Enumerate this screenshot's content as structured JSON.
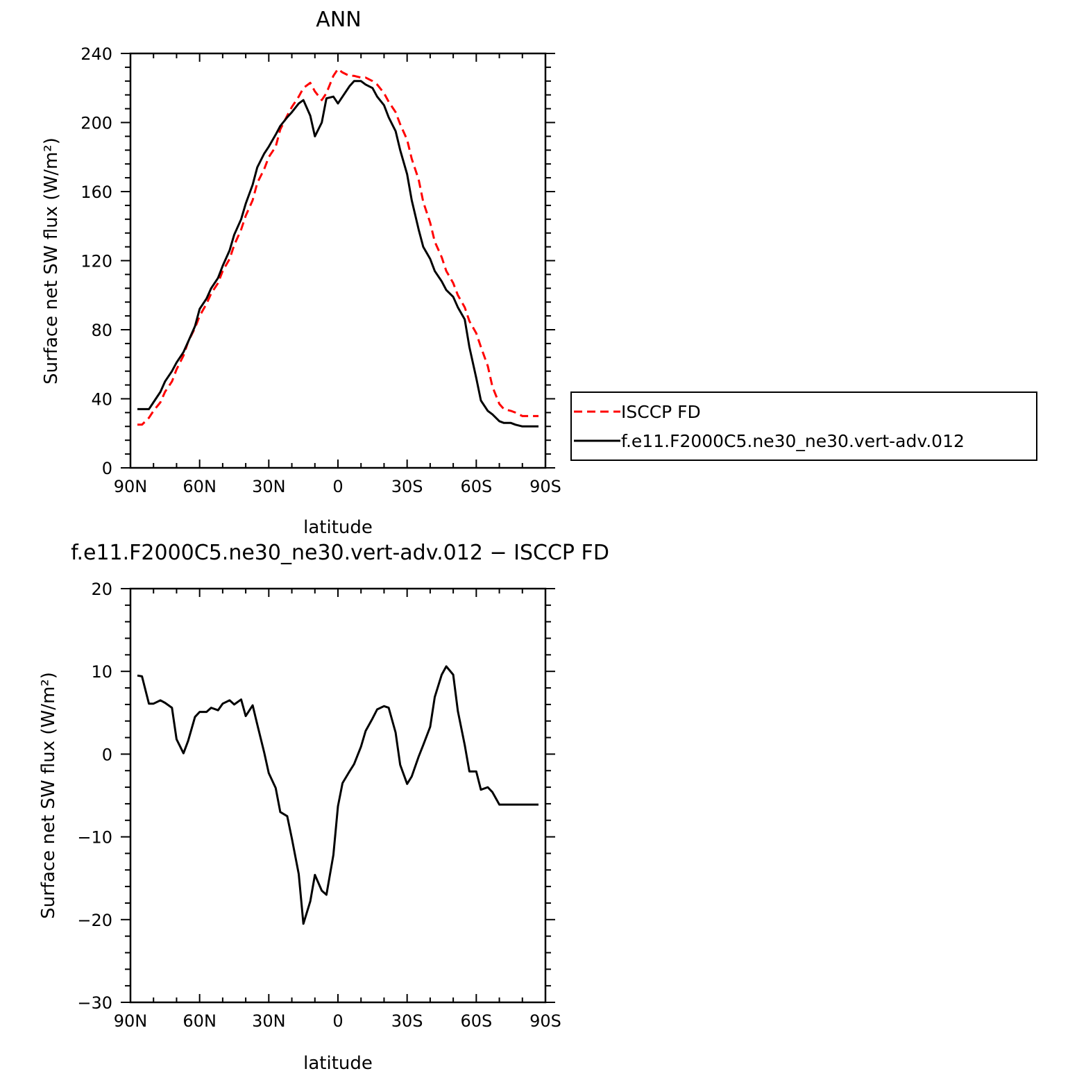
{
  "chart_data": [
    {
      "type": "line",
      "title": "ANN",
      "xlabel": "latitude",
      "ylabel": "Surface net SW flux (W/m²)",
      "xlim": [
        90,
        -90
      ],
      "ylim": [
        0,
        240
      ],
      "x_ticks": [
        90,
        60,
        30,
        0,
        -30,
        -60,
        -90
      ],
      "x_tick_labels": [
        "90N",
        "60N",
        "30N",
        "0",
        "30S",
        "60S",
        "90S"
      ],
      "y_ticks": [
        0,
        40,
        80,
        120,
        160,
        200,
        240
      ],
      "y_tick_labels": [
        "0",
        "40",
        "80",
        "120",
        "160",
        "200",
        "240"
      ],
      "grid": false,
      "legend_position": "right",
      "series": [
        {
          "name": "ISCCP FD",
          "color": "#ff0000",
          "dash": true,
          "x": [
            87,
            85,
            82,
            80,
            77,
            75,
            72,
            70,
            67,
            65,
            62,
            60,
            57,
            55,
            52,
            50,
            47,
            45,
            42,
            40,
            37,
            35,
            32,
            30,
            27,
            25,
            22,
            20,
            17,
            15,
            12,
            10,
            7,
            5,
            2,
            0,
            -2,
            -5,
            -7,
            -10,
            -12,
            -15,
            -17,
            -20,
            -22,
            -25,
            -27,
            -30,
            -32,
            -35,
            -37,
            -40,
            -42,
            -45,
            -47,
            -50,
            -52,
            -55,
            -57,
            -60,
            -62,
            -65,
            -67,
            -70,
            -72,
            -75,
            -77,
            -80,
            -82,
            -85,
            -87
          ],
          "y": [
            25,
            25,
            29,
            33,
            38,
            44,
            50,
            57,
            65,
            73,
            81,
            88,
            95,
            101,
            107,
            114,
            121,
            129,
            138,
            146,
            155,
            165,
            173,
            180,
            186,
            196,
            204,
            209,
            215,
            220,
            223,
            218,
            213,
            217,
            227,
            231,
            229,
            227,
            227,
            226,
            226,
            224,
            222,
            217,
            212,
            206,
            199,
            190,
            179,
            167,
            154,
            142,
            131,
            122,
            114,
            107,
            100,
            93,
            85,
            78,
            70,
            59,
            47,
            37,
            34,
            33,
            32,
            30,
            30,
            30,
            30
          ]
        },
        {
          "name": "f.e11.F2000C5.ne30_ne30.vert-adv.012",
          "color": "#000000",
          "dash": false,
          "x": [
            87,
            85,
            82,
            80,
            77,
            75,
            72,
            70,
            67,
            65,
            62,
            60,
            57,
            55,
            52,
            50,
            47,
            45,
            42,
            40,
            37,
            35,
            32,
            30,
            27,
            25,
            22,
            20,
            17,
            15,
            12,
            10,
            7,
            5,
            2,
            0,
            -2,
            -5,
            -7,
            -10,
            -12,
            -15,
            -17,
            -20,
            -22,
            -25,
            -27,
            -30,
            -32,
            -35,
            -37,
            -40,
            -42,
            -45,
            -47,
            -50,
            -52,
            -55,
            -57,
            -60,
            -62,
            -65,
            -67,
            -70,
            -72,
            -75,
            -77,
            -80,
            -82,
            -85,
            -87
          ],
          "y": [
            34,
            34,
            34,
            38,
            44,
            50,
            56,
            61,
            67,
            73,
            82,
            92,
            98,
            104,
            110,
            117,
            126,
            135,
            144,
            153,
            164,
            174,
            182,
            186,
            193,
            198,
            203,
            206,
            211,
            213,
            204,
            192,
            200,
            214,
            215,
            211,
            215,
            221,
            224,
            224,
            222,
            220,
            215,
            210,
            203,
            195,
            184,
            170,
            155,
            138,
            128,
            121,
            114,
            108,
            103,
            99,
            93,
            86,
            70,
            52,
            39,
            33,
            31,
            27,
            26,
            26,
            25,
            24,
            24,
            24,
            24
          ]
        }
      ]
    },
    {
      "type": "line",
      "title": "f.e11.F2000C5.ne30_ne30.vert-adv.012 − ISCCP FD",
      "xlabel": "latitude",
      "ylabel": "Surface net SW flux (W/m²)",
      "xlim": [
        90,
        -90
      ],
      "ylim": [
        -30,
        20
      ],
      "x_ticks": [
        90,
        60,
        30,
        0,
        -30,
        -60,
        -90
      ],
      "x_tick_labels": [
        "90N",
        "60N",
        "30N",
        "0",
        "30S",
        "60S",
        "90S"
      ],
      "y_ticks": [
        -30,
        -20,
        -10,
        0,
        10,
        20
      ],
      "y_tick_labels": [
        "−30",
        "−20",
        "−10",
        "0",
        "10",
        "20"
      ],
      "grid": false,
      "series": [
        {
          "color": "#000000",
          "dash": false,
          "x": [
            87,
            85,
            82,
            80,
            77,
            75,
            72,
            70,
            67,
            65,
            62,
            60,
            57,
            55,
            52,
            50,
            47,
            45,
            42,
            40,
            37,
            35,
            32,
            30,
            27,
            25,
            22,
            20,
            17,
            15,
            12,
            10,
            7,
            5,
            2,
            0,
            -2,
            -5,
            -7,
            -10,
            -12,
            -15,
            -17,
            -20,
            -22,
            -25,
            -27,
            -30,
            -32,
            -35,
            -37,
            -40,
            -42,
            -45,
            -47,
            -50,
            -52,
            -55,
            -57,
            -60,
            -62,
            -65,
            -67,
            -70,
            -72,
            -75,
            -77,
            -80,
            -82,
            -85,
            -87
          ],
          "y": [
            9.5,
            9.4,
            6.1,
            6.1,
            6.5,
            6.2,
            5.6,
            1.8,
            0.1,
            1.6,
            4.5,
            5.1,
            5.1,
            5.6,
            5.3,
            6.1,
            6.5,
            6.0,
            6.6,
            4.6,
            5.9,
            3.6,
            0.2,
            -2.3,
            -4.1,
            -7.0,
            -7.5,
            -10.2,
            -14.5,
            -20.5,
            -17.8,
            -14.6,
            -16.5,
            -17.0,
            -12.2,
            -6.3,
            -3.5,
            -2.1,
            -1.2,
            0.9,
            2.8,
            4.3,
            5.4,
            5.8,
            5.6,
            2.6,
            -1.3,
            -3.6,
            -2.7,
            -0.3,
            1.1,
            3.3,
            6.9,
            9.6,
            10.6,
            9.6,
            5.2,
            1.1,
            -2.1,
            -2.1,
            -4.3,
            -4.0,
            -4.6,
            -6.1,
            -6.1,
            -6.1,
            -6.1,
            -6.1,
            -6.1,
            -6.1,
            -6.1
          ]
        }
      ]
    }
  ]
}
